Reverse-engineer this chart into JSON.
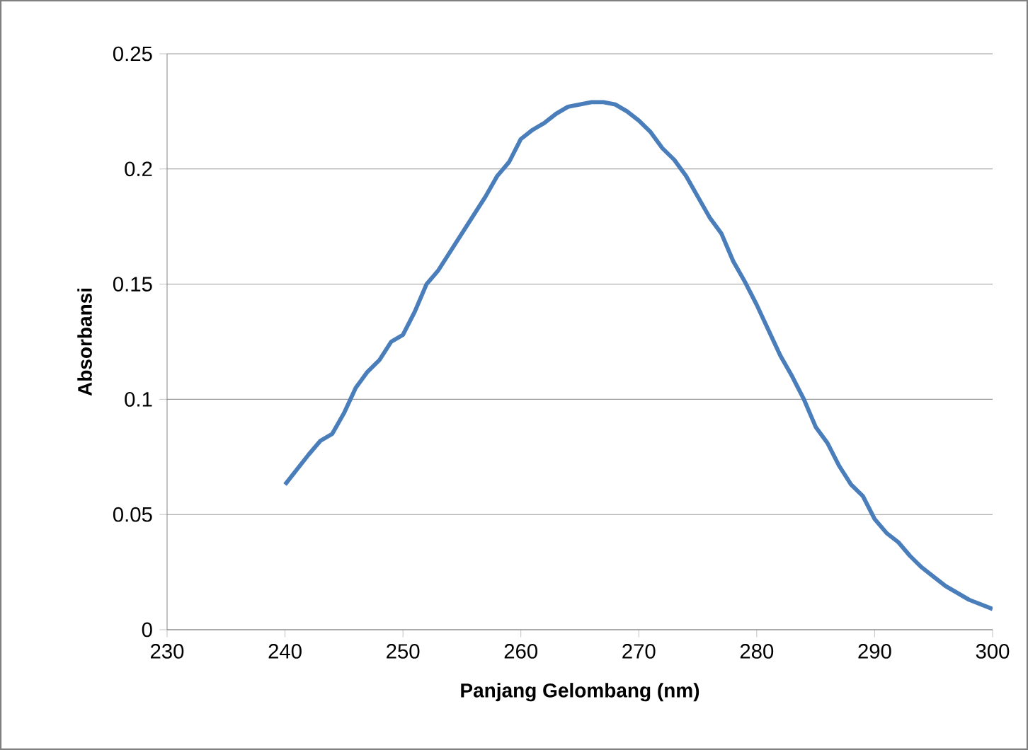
{
  "chart_data": {
    "type": "line",
    "xlabel": "Panjang Gelombang (nm)",
    "ylabel": "Absorbansi",
    "x": [
      240,
      242,
      243,
      244,
      245,
      246,
      247,
      248,
      249,
      250,
      251,
      252,
      253,
      254,
      255,
      256,
      257,
      258,
      259,
      260,
      261,
      262,
      263,
      264,
      265,
      266,
      267,
      268,
      269,
      270,
      271,
      272,
      273,
      274,
      275,
      276,
      277,
      278,
      279,
      280,
      281,
      282,
      283,
      284,
      285,
      286,
      287,
      288,
      289,
      290,
      291,
      292,
      293,
      294,
      295,
      296,
      297,
      298,
      299,
      300
    ],
    "series": [
      {
        "color": "#4a7ebb",
        "values": [
          0.063,
          0.076,
          0.082,
          0.085,
          0.094,
          0.105,
          0.112,
          0.117,
          0.125,
          0.128,
          0.138,
          0.15,
          0.156,
          0.164,
          0.172,
          0.18,
          0.188,
          0.197,
          0.203,
          0.213,
          0.217,
          0.22,
          0.224,
          0.227,
          0.228,
          0.229,
          0.229,
          0.228,
          0.225,
          0.221,
          0.216,
          0.209,
          0.204,
          0.197,
          0.188,
          0.179,
          0.172,
          0.16,
          0.151,
          0.141,
          0.13,
          0.119,
          0.11,
          0.1,
          0.088,
          0.081,
          0.071,
          0.063,
          0.058,
          0.048,
          0.042,
          0.038,
          0.032,
          0.027,
          0.023,
          0.019,
          0.016,
          0.013,
          0.011,
          0.009
        ]
      }
    ],
    "xlim": [
      230,
      300
    ],
    "xticks": [
      230,
      240,
      250,
      260,
      270,
      280,
      290,
      300
    ],
    "ylim": [
      0,
      0.25
    ],
    "yticks": [
      0,
      0.05,
      0.1,
      0.15,
      0.2,
      0.25
    ],
    "grid": "y",
    "marker": "none",
    "line_style": "solid"
  }
}
